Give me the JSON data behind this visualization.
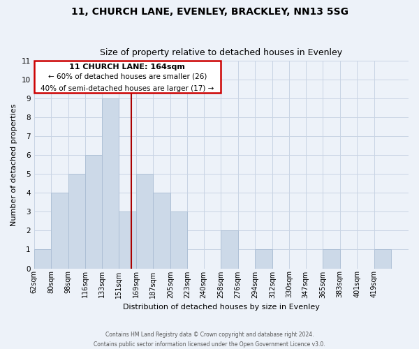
{
  "title": "11, CHURCH LANE, EVENLEY, BRACKLEY, NN13 5SG",
  "subtitle": "Size of property relative to detached houses in Evenley",
  "xlabel": "Distribution of detached houses by size in Evenley",
  "ylabel": "Number of detached properties",
  "bar_color": "#ccd9e8",
  "bar_edge_color": "#aabdd4",
  "grid_color": "#c8d4e4",
  "bg_color": "#edf2f9",
  "bin_labels": [
    "62sqm",
    "80sqm",
    "98sqm",
    "116sqm",
    "133sqm",
    "151sqm",
    "169sqm",
    "187sqm",
    "205sqm",
    "223sqm",
    "240sqm",
    "258sqm",
    "276sqm",
    "294sqm",
    "312sqm",
    "330sqm",
    "347sqm",
    "365sqm",
    "383sqm",
    "401sqm",
    "419sqm"
  ],
  "bar_heights": [
    1,
    4,
    5,
    6,
    9,
    3,
    5,
    4,
    3,
    0,
    0,
    2,
    0,
    1,
    0,
    0,
    0,
    1,
    0,
    0,
    1
  ],
  "bin_edges": [
    62,
    80,
    98,
    116,
    133,
    151,
    169,
    187,
    205,
    223,
    240,
    258,
    276,
    294,
    312,
    330,
    347,
    365,
    383,
    401,
    419,
    437
  ],
  "ylim": [
    0,
    11
  ],
  "yticks": [
    0,
    1,
    2,
    3,
    4,
    5,
    6,
    7,
    8,
    9,
    10,
    11
  ],
  "annotation_title": "11 CHURCH LANE: 164sqm",
  "annotation_line1": "← 60% of detached houses are smaller (26)",
  "annotation_line2": "40% of semi-detached houses are larger (17) →",
  "footnote1": "Contains HM Land Registry data © Crown copyright and database right 2024.",
  "footnote2": "Contains public sector information licensed under the Open Government Licence v3.0.",
  "property_line_color": "#aa0000",
  "annotation_box_color": "#ffffff",
  "annotation_box_edge": "#cc0000",
  "title_fontsize": 10,
  "subtitle_fontsize": 9,
  "axis_label_fontsize": 8,
  "tick_fontsize": 7,
  "annotation_title_fontsize": 8,
  "annotation_text_fontsize": 7.5
}
